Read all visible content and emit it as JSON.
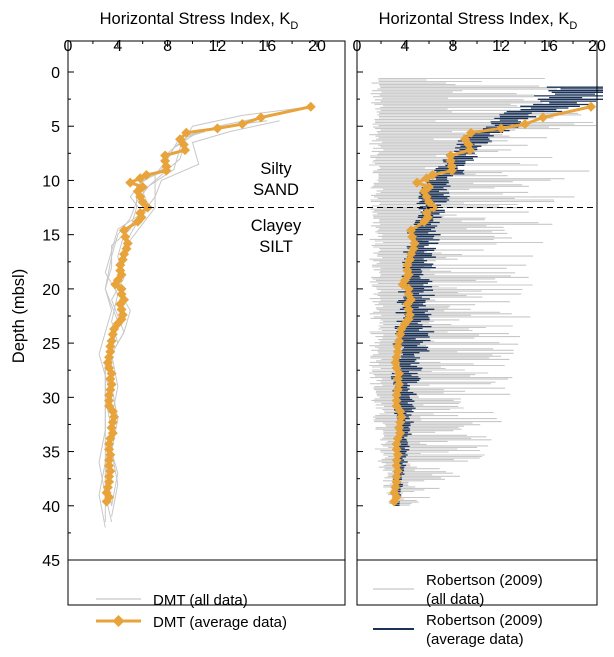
{
  "colors": {
    "gray": "#c8c8c8",
    "orange": "#e8a33a",
    "navy": "#1b3358",
    "dash": "#000000"
  },
  "chart_data": [
    {
      "type": "line",
      "panel": "left",
      "x_axis_title": "Horizontal Stress Index, K",
      "x_axis_subscript": "D",
      "y_axis_title": "Depth (mbsl)",
      "xlim": [
        0,
        20
      ],
      "ylim": [
        45,
        0
      ],
      "x_ticks": [
        "0",
        "4",
        "8",
        "12",
        "16",
        "20"
      ],
      "y_ticks": [
        "0",
        "5",
        "10",
        "15",
        "20",
        "25",
        "30",
        "35",
        "40",
        "45"
      ],
      "annotations": {
        "upper_layer": [
          "Silty",
          "SAND"
        ],
        "lower_layer": [
          "Clayey",
          "SILT"
        ]
      },
      "boundary_depth": 12.5,
      "legend": {
        "position": "bottom",
        "entries": [
          "DMT (all data)",
          "DMT (average data)"
        ]
      },
      "series": [
        {
          "name": "DMT (all data)",
          "style": "thin gray lines",
          "profiles": [
            [
              [
                15.5,
                4.2
              ],
              [
                12,
                5
              ],
              [
                9.5,
                6
              ],
              [
                9,
                8
              ],
              [
                7.5,
                9.5
              ],
              [
                6,
                11
              ],
              [
                6.5,
                12.5
              ],
              [
                5.5,
                14
              ],
              [
                4.5,
                16
              ],
              [
                4,
                19
              ],
              [
                4.5,
                22
              ],
              [
                3.5,
                25
              ],
              [
                3.5,
                28
              ],
              [
                3,
                31
              ],
              [
                3,
                34
              ],
              [
                3,
                37
              ],
              [
                3,
                39
              ],
              [
                3,
                41.5
              ]
            ],
            [
              [
                19.5,
                3.2
              ],
              [
                14,
                4
              ],
              [
                10,
                5
              ],
              [
                9,
                7
              ],
              [
                8.5,
                9
              ],
              [
                6.5,
                10.5
              ],
              [
                5.5,
                12
              ],
              [
                5,
                13.5
              ],
              [
                4,
                15
              ],
              [
                3.5,
                17
              ],
              [
                3,
                20
              ],
              [
                4,
                23
              ],
              [
                3.5,
                26
              ],
              [
                3.5,
                29
              ],
              [
                4,
                32
              ],
              [
                3.5,
                35
              ],
              [
                4,
                38
              ],
              [
                3.5,
                41
              ]
            ],
            [
              [
                17,
                4.5
              ],
              [
                13,
                5.5
              ],
              [
                10,
                6.5
              ],
              [
                10.5,
                8.5
              ],
              [
                7.5,
                10
              ],
              [
                7,
                11.5
              ],
              [
                6,
                13
              ],
              [
                4.5,
                15
              ],
              [
                4,
                17
              ],
              [
                4.5,
                19
              ],
              [
                3.5,
                21
              ],
              [
                4.5,
                24
              ],
              [
                3,
                27
              ],
              [
                3,
                30
              ],
              [
                3.5,
                33
              ],
              [
                3,
                36
              ],
              [
                2.5,
                39
              ],
              [
                3,
                42
              ]
            ],
            [
              [
                13,
                5
              ],
              [
                10.5,
                5.5
              ],
              [
                8.5,
                7
              ],
              [
                7.5,
                9
              ],
              [
                5.5,
                10.5
              ],
              [
                5.5,
                12.5
              ],
              [
                5,
                14.5
              ],
              [
                3.5,
                16
              ],
              [
                3.5,
                18
              ],
              [
                3,
                20
              ],
              [
                3.5,
                22
              ],
              [
                3,
                24
              ],
              [
                2.5,
                26
              ],
              [
                3,
                28
              ],
              [
                3.5,
                30
              ],
              [
                3.5,
                33
              ],
              [
                3,
                36
              ],
              [
                3.5,
                40
              ]
            ],
            [
              [
                16,
                4.5
              ],
              [
                12.5,
                5
              ],
              [
                9,
                6
              ],
              [
                8,
                8
              ],
              [
                7,
                9.5
              ],
              [
                7,
                11
              ],
              [
                7,
                12.5
              ],
              [
                6,
                14
              ],
              [
                5,
                15.5
              ],
              [
                4.5,
                17.5
              ],
              [
                4,
                20
              ],
              [
                5,
                22
              ],
              [
                4.5,
                24
              ],
              [
                3.5,
                26
              ],
              [
                4,
                29
              ],
              [
                3.5,
                32
              ],
              [
                3.5,
                35
              ],
              [
                4,
                37
              ],
              [
                3.5,
                40
              ]
            ],
            [
              [
                11,
                5.5
              ],
              [
                9.5,
                6
              ],
              [
                8,
                7.5
              ],
              [
                8,
                9
              ],
              [
                6,
                10
              ],
              [
                5,
                11.5
              ],
              [
                6,
                13
              ],
              [
                4,
                14.5
              ],
              [
                3.5,
                16.5
              ],
              [
                3,
                18.5
              ],
              [
                4,
                20.5
              ],
              [
                3.5,
                23
              ],
              [
                4,
                25
              ],
              [
                3,
                27
              ],
              [
                3,
                30
              ],
              [
                3,
                33
              ],
              [
                2.5,
                36
              ],
              [
                3,
                39
              ],
              [
                3.5,
                41.5
              ]
            ]
          ]
        },
        {
          "name": "DMT (average data)",
          "style": "orange line with diamond markers",
          "points": [
            [
              19.5,
              3.2
            ],
            [
              15.5,
              4.2
            ],
            [
              14,
              4.8
            ],
            [
              12,
              5.2
            ],
            [
              9.5,
              5.6
            ],
            [
              9,
              6.2
            ],
            [
              9.3,
              6.7
            ],
            [
              9.4,
              7.2
            ],
            [
              7.8,
              7.7
            ],
            [
              7.8,
              8.2
            ],
            [
              7.9,
              8.7
            ],
            [
              7.9,
              9.1
            ],
            [
              6.3,
              9.5
            ],
            [
              5.8,
              9.8
            ],
            [
              5,
              10.2
            ],
            [
              6,
              10.6
            ],
            [
              5.6,
              11
            ],
            [
              5.8,
              11.5
            ],
            [
              6,
              12
            ],
            [
              6.4,
              12.5
            ],
            [
              5.8,
              13
            ],
            [
              5.9,
              13.4
            ],
            [
              5.6,
              13.8
            ],
            [
              4.5,
              14.6
            ],
            [
              4.6,
              15.2
            ],
            [
              4.8,
              15.8
            ],
            [
              4.7,
              16.3
            ],
            [
              4.5,
              16.8
            ],
            [
              4.4,
              17.3
            ],
            [
              4.2,
              17.8
            ],
            [
              4.2,
              18.3
            ],
            [
              4.3,
              18.7
            ],
            [
              4,
              19.2
            ],
            [
              3.8,
              19.6
            ],
            [
              4.3,
              20
            ],
            [
              4.3,
              20.5
            ],
            [
              4.5,
              21
            ],
            [
              4.2,
              21.4
            ],
            [
              4.3,
              21.9
            ],
            [
              4.4,
              22.4
            ],
            [
              4.3,
              22.8
            ],
            [
              4,
              23.2
            ],
            [
              3.7,
              23.7
            ],
            [
              3.6,
              24.2
            ],
            [
              3.5,
              24.8
            ],
            [
              3.4,
              25.3
            ],
            [
              3.4,
              25.8
            ],
            [
              3.3,
              26.3
            ],
            [
              3.2,
              26.8
            ],
            [
              3.3,
              27.3
            ],
            [
              3.5,
              27.8
            ],
            [
              3.4,
              28.3
            ],
            [
              3.5,
              28.8
            ],
            [
              3.4,
              29.3
            ],
            [
              3.3,
              29.8
            ],
            [
              3.3,
              30.3
            ],
            [
              3.3,
              30.8
            ],
            [
              3.6,
              31.3
            ],
            [
              3.7,
              31.8
            ],
            [
              3.6,
              32.3
            ],
            [
              3.5,
              32.8
            ],
            [
              3.6,
              33.3
            ],
            [
              3.4,
              33.8
            ],
            [
              3.3,
              34.3
            ],
            [
              3.3,
              34.8
            ],
            [
              3.4,
              35.3
            ],
            [
              3.3,
              35.8
            ],
            [
              3.3,
              36.3
            ],
            [
              3.4,
              36.8
            ],
            [
              3.3,
              37.3
            ],
            [
              3.3,
              37.8
            ],
            [
              3.2,
              38.3
            ],
            [
              3.1,
              38.8
            ],
            [
              3.3,
              39.2
            ],
            [
              3.1,
              39.6
            ]
          ]
        }
      ]
    },
    {
      "type": "line",
      "panel": "right",
      "x_axis_title": "Horizontal Stress Index, K",
      "x_axis_subscript": "D",
      "xlim": [
        0,
        20
      ],
      "ylim": [
        45,
        0
      ],
      "x_ticks": [
        "0",
        "4",
        "8",
        "12",
        "16",
        "20"
      ],
      "boundary_depth": 12.5,
      "legend": {
        "position": "bottom",
        "entries": [
          "Robertson (2009)\n(all data)",
          "Robertson (2009)\n(average data)"
        ]
      },
      "series": [
        {
          "name": "Robertson (2009) (all data)",
          "style": "dense light-gray horizontal traces",
          "envelope_left": [
            [
              1,
              0.5
            ],
            [
              1,
              3
            ],
            [
              1,
              6
            ],
            [
              1,
              9
            ],
            [
              1,
              12
            ],
            [
              1,
              15
            ],
            [
              1,
              20
            ],
            [
              1,
              25
            ],
            [
              1,
              30
            ],
            [
              1.5,
              35
            ],
            [
              2,
              38
            ],
            [
              2.5,
              40
            ]
          ],
          "envelope_right": [
            [
              20,
              0.5
            ],
            [
              20,
              3
            ],
            [
              20,
              6
            ],
            [
              19.5,
              9
            ],
            [
              18,
              12
            ],
            [
              16,
              15
            ],
            [
              15,
              20
            ],
            [
              14,
              25
            ],
            [
              13,
              30
            ],
            [
              11,
              35
            ],
            [
              8,
              38
            ],
            [
              5,
              40
            ]
          ]
        },
        {
          "name": "Robertson (2009) (average data)",
          "style": "navy horizontal traces",
          "profile": [
            [
              19,
              1.5
            ],
            [
              18,
              2.2
            ],
            [
              17,
              2.8
            ],
            [
              15,
              3.5
            ],
            [
              13,
              4.2
            ],
            [
              12,
              5
            ],
            [
              10,
              6
            ],
            [
              9,
              7.2
            ],
            [
              8.2,
              8.5
            ],
            [
              7.2,
              9.6
            ],
            [
              6.6,
              10.8
            ],
            [
              6.2,
              12
            ],
            [
              5.8,
              13.5
            ],
            [
              5.4,
              15
            ],
            [
              5.1,
              17
            ],
            [
              4.9,
              19
            ],
            [
              4.8,
              21
            ],
            [
              4.7,
              23
            ],
            [
              4.5,
              25
            ],
            [
              4.1,
              27
            ],
            [
              3.9,
              29
            ],
            [
              3.9,
              31
            ],
            [
              3.8,
              33
            ],
            [
              3.7,
              35
            ],
            [
              3.5,
              37
            ],
            [
              3.3,
              39
            ],
            [
              3.2,
              40
            ]
          ],
          "spread": [
            [
              1.5,
              4
            ],
            [
              4.5,
              1.4
            ],
            [
              12,
              1.3
            ],
            [
              20,
              1.5
            ],
            [
              25,
              1.6
            ],
            [
              30,
              0.9
            ],
            [
              35,
              0.6
            ],
            [
              40,
              0.3
            ]
          ]
        },
        {
          "name": "DMT (average data)",
          "style": "orange line with diamond markers",
          "same_as": "left"
        }
      ]
    }
  ],
  "legend": {
    "dmt_all": "DMT (all data)",
    "dmt_avg": "DMT (average data)",
    "rob_all_1": "Robertson (2009)",
    "rob_all_2": "(all data)",
    "rob_avg_1": "Robertson (2009)",
    "rob_avg_2": "(average data)"
  }
}
